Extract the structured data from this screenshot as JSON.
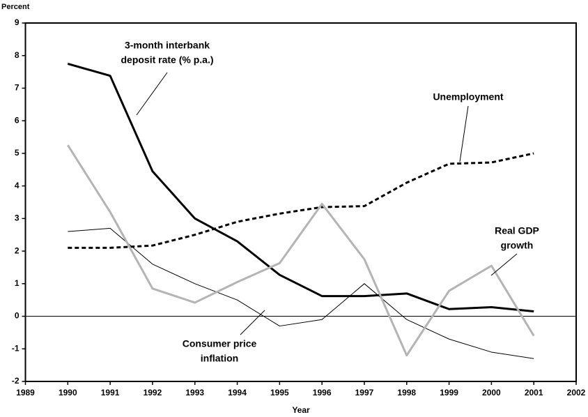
{
  "chart_data": {
    "type": "line",
    "y_label": "Percent",
    "x_label": "Year",
    "xlim": [
      1989,
      2002
    ],
    "xticks": [
      1989,
      1990,
      1991,
      1992,
      1993,
      1994,
      1995,
      1996,
      1997,
      1998,
      1999,
      2000,
      2001,
      2002
    ],
    "ylim": [
      -2,
      9
    ],
    "yticks": [
      -2,
      -1,
      0,
      1,
      2,
      3,
      4,
      5,
      6,
      7,
      8,
      9
    ],
    "x": [
      1990,
      1991,
      1992,
      1993,
      1994,
      1995,
      1996,
      1997,
      1998,
      1999,
      2000,
      2001
    ],
    "series": [
      {
        "color": "#000000",
        "style": "solid",
        "width": 3,
        "values": [
          7.75,
          7.38,
          4.45,
          3.0,
          2.3,
          1.27,
          0.62,
          0.62,
          0.7,
          0.22,
          0.28,
          0.15
        ]
      },
      {
        "color": "#000000",
        "style": "dashed",
        "width": 3,
        "values": [
          2.1,
          2.1,
          2.17,
          2.5,
          2.9,
          3.15,
          3.35,
          3.38,
          4.1,
          4.68,
          4.72,
          5.0
        ]
      },
      {
        "color": "#000000",
        "style": "solid",
        "width": 1,
        "values": [
          2.6,
          2.7,
          1.6,
          1.0,
          0.5,
          -0.3,
          -0.1,
          1.0,
          -0.1,
          -0.7,
          -1.1,
          -1.3
        ]
      },
      {
        "color": "#b4b4b4",
        "style": "solid",
        "width": 3,
        "values": [
          5.25,
          3.2,
          0.85,
          0.42,
          1.05,
          1.63,
          3.45,
          1.75,
          -1.2,
          0.78,
          1.55,
          -0.6
        ]
      }
    ],
    "annotations": [
      {
        "lines": [
          "3-month interbank",
          "deposit rate (% p.a.)"
        ]
      },
      {
        "lines": [
          "Unemployment"
        ]
      },
      {
        "lines": [
          "Real GDP",
          "growth"
        ]
      },
      {
        "lines": [
          "Consumer price",
          "inflation"
        ]
      }
    ]
  }
}
